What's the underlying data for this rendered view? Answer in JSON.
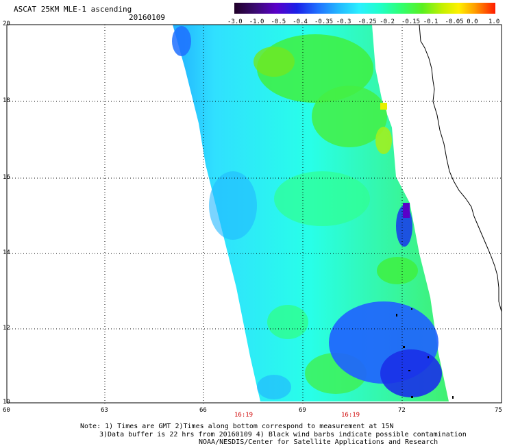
{
  "header": {
    "title": "ASCAT 25KM MLE-1 ascending",
    "date": "20160109"
  },
  "colorbar": {
    "labels": [
      "-3.0",
      "-1.0",
      "-0.5",
      "-0.4",
      "-0.35",
      "-0.3",
      "-0.25",
      "-0.2",
      "-0.15",
      "-0.1",
      "-0.05",
      "0.0",
      "1.0"
    ],
    "colors": [
      "#2a0030",
      "#3b0a66",
      "#5200b8",
      "#1e1ee0",
      "#2266ff",
      "#2aa0ff",
      "#33d8ff",
      "#20ffe6",
      "#30ff90",
      "#40f040",
      "#90f020",
      "#e8f000",
      "#ffb000",
      "#ff6000",
      "#ff2000"
    ]
  },
  "axes": {
    "lat_labels": [
      "20",
      "18",
      "16",
      "14",
      "12",
      "10"
    ],
    "lon_labels": [
      "60",
      "63",
      "66",
      "69",
      "72",
      "75"
    ],
    "times": [
      "16:19",
      "16:19"
    ]
  },
  "notes": {
    "line1": "Note: 1) Times are GMT 2)Times along bottom correspond to measurement at 15N",
    "line2": "3)Data buffer is 22 hrs from 20160109 4) Black wind barbs indicate possible contamination",
    "line3": "NOAA/NESDIS/Center for Satellite Applications and Research"
  }
}
